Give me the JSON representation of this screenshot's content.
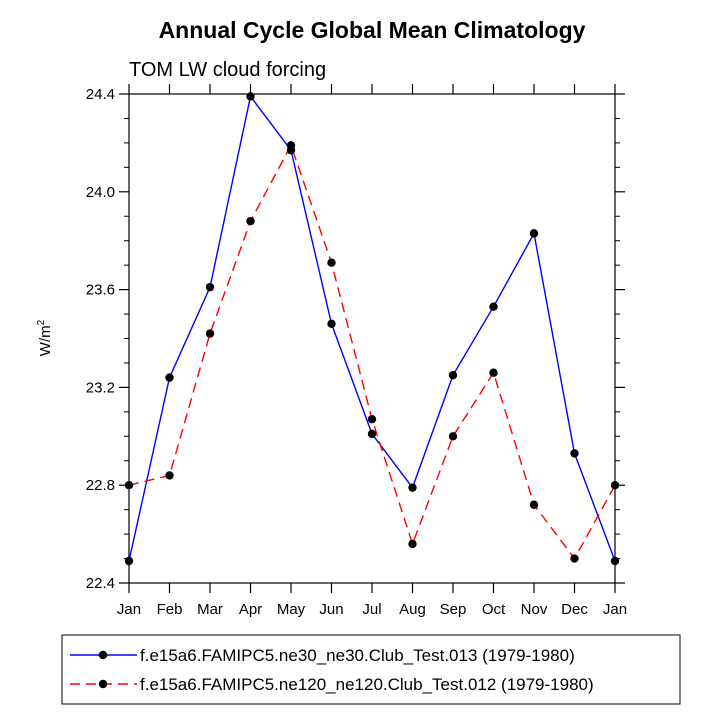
{
  "chart_data": {
    "type": "line",
    "title": "Annual Cycle Global Mean Climatology",
    "subtitle": "TOM LW cloud forcing",
    "ylabel_base": "W/m",
    "ylabel_sup": "2",
    "xlabel": "",
    "ylim": [
      22.4,
      24.4
    ],
    "yticks": [
      "22.4",
      "22.8",
      "23.2",
      "23.6",
      "24.0",
      "24.4"
    ],
    "categories": [
      "Jan",
      "Feb",
      "Mar",
      "Apr",
      "May",
      "Jun",
      "Jul",
      "Aug",
      "Sep",
      "Oct",
      "Nov",
      "Dec",
      "Jan"
    ],
    "series": [
      {
        "name": "f.e15a6.FAMIPC5.ne30_ne30.Club_Test.013 (1979-1980)",
        "color": "#0000ff",
        "dash": "solid",
        "values": [
          22.49,
          23.24,
          23.61,
          24.39,
          24.17,
          23.46,
          23.01,
          22.79,
          23.25,
          23.53,
          23.83,
          22.93,
          22.49
        ]
      },
      {
        "name": "f.e15a6.FAMIPC5.ne120_ne120.Club_Test.012 (1979-1980)",
        "color": "#ff0000",
        "dash": "dashed",
        "values": [
          22.8,
          22.84,
          23.42,
          23.88,
          24.19,
          23.71,
          23.07,
          22.56,
          23.0,
          23.26,
          22.72,
          22.5,
          22.8
        ]
      }
    ],
    "legend_position": "bottom"
  }
}
